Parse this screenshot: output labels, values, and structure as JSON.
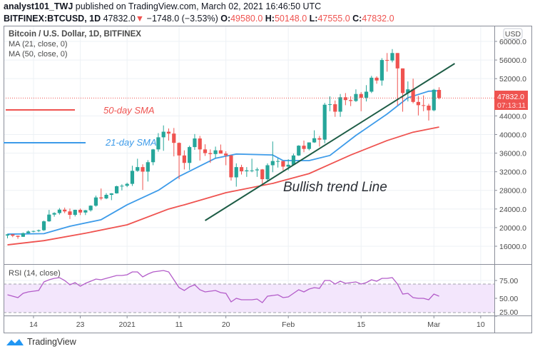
{
  "header": {
    "author": "analyst101_TWJ",
    "published_text": "published on TradingView.com, March 02, 2021 16:46:50 UTC",
    "symbol": "BITFINEX:BTCUSD, 1D",
    "last_price": "47832.0",
    "direction_icon": "triangle-down-icon",
    "change": "−1748.0 (−3.53%)",
    "open_label": "O:",
    "open": "49580.0",
    "high_label": "H:",
    "high": "50148.0",
    "low_label": "L:",
    "low": "47555.0",
    "close_label": "C:",
    "close": "47832.0"
  },
  "legend": {
    "title": "Bitcoin / U.S. Dollar, 1D, BITFINEX",
    "ma21": "MA (21, close, 0)",
    "ma50": "MA (50, close, 0)",
    "rsi": "RSI (14, close)"
  },
  "annotations": {
    "sma50_label": "50-day SMA",
    "sma21_label": "21-day SMA",
    "trend_label": "Bullish trend Line"
  },
  "price_axis": {
    "currency": "USD",
    "ticks": [
      "60000.0",
      "56000.0",
      "52000.0",
      "44000.0",
      "40000.0",
      "36000.0",
      "32000.0",
      "28000.0",
      "24000.0",
      "20000.0",
      "16000.0"
    ],
    "current_price": "47832.0",
    "countdown": "07:13:11"
  },
  "rsi_axis": {
    "ticks": [
      "75.00",
      "50.00",
      "25.00"
    ]
  },
  "time_axis": [
    {
      "label": "14",
      "date": "2020-12-14"
    },
    {
      "label": "23",
      "date": "2020-12-23"
    },
    {
      "label": "2021",
      "date": "2021-01-01"
    },
    {
      "label": "11",
      "date": "2021-01-11"
    },
    {
      "label": "20",
      "date": "2021-01-20"
    },
    {
      "label": "Feb",
      "date": "2021-02-01"
    },
    {
      "label": "15",
      "date": "2021-02-15"
    },
    {
      "label": "Mar",
      "date": "2021-03-01"
    },
    {
      "label": "10",
      "date": "2021-03-10"
    }
  ],
  "footer": {
    "brand": "TradingView"
  },
  "colors": {
    "up": "#26a69a",
    "down": "#ef5350",
    "ma21": "#3d9be9",
    "ma50": "#ef5350",
    "trend": "#1d5c45",
    "rsi": "#b35cc9",
    "rsi_band": "#f3e6fc"
  },
  "chart_data": {
    "type": "candlestick",
    "ylim": [
      14000,
      62000
    ],
    "candles_columns": [
      "date",
      "open",
      "high",
      "low",
      "close"
    ],
    "candles": [
      [
        "2020-12-09",
        18300,
        18650,
        17700,
        18550
      ],
      [
        "2020-12-10",
        18550,
        18600,
        17950,
        18250
      ],
      [
        "2020-12-11",
        18250,
        18300,
        17600,
        18030
      ],
      [
        "2020-12-12",
        18030,
        18950,
        18000,
        18800
      ],
      [
        "2020-12-13",
        18800,
        19400,
        18750,
        19170
      ],
      [
        "2020-12-14",
        19170,
        19350,
        19000,
        19270
      ],
      [
        "2020-12-15",
        19270,
        19580,
        19050,
        19440
      ],
      [
        "2020-12-16",
        19440,
        21500,
        19300,
        21350
      ],
      [
        "2020-12-17",
        21350,
        23800,
        21250,
        22800
      ],
      [
        "2020-12-18",
        22800,
        23300,
        22350,
        23130
      ],
      [
        "2020-12-19",
        23130,
        24200,
        22800,
        23860
      ],
      [
        "2020-12-20",
        23860,
        24300,
        23100,
        23480
      ],
      [
        "2020-12-21",
        23480,
        24100,
        21850,
        22740
      ],
      [
        "2020-12-22",
        22740,
        23850,
        22400,
        23820
      ],
      [
        "2020-12-23",
        23820,
        24100,
        22700,
        23240
      ],
      [
        "2020-12-24",
        23240,
        23800,
        22700,
        23730
      ],
      [
        "2020-12-25",
        23730,
        24790,
        23450,
        24710
      ],
      [
        "2020-12-26",
        24710,
        26870,
        24500,
        26480
      ],
      [
        "2020-12-27",
        26480,
        28400,
        25900,
        26270
      ],
      [
        "2020-12-28",
        26270,
        27400,
        26100,
        27040
      ],
      [
        "2020-12-29",
        27040,
        27400,
        25900,
        27360
      ],
      [
        "2020-12-30",
        27360,
        29000,
        27300,
        28890
      ],
      [
        "2020-12-31",
        28890,
        29300,
        28000,
        28990
      ],
      [
        "2021-01-01",
        28990,
        29650,
        28700,
        29400
      ],
      [
        "2021-01-02",
        29400,
        33300,
        28950,
        32200
      ],
      [
        "2021-01-03",
        32200,
        34800,
        32000,
        33000
      ],
      [
        "2021-01-04",
        33000,
        33600,
        28100,
        32030
      ],
      [
        "2021-01-05",
        32030,
        34500,
        29900,
        34050
      ],
      [
        "2021-01-06",
        34050,
        36900,
        33400,
        36800
      ],
      [
        "2021-01-07",
        36800,
        40300,
        36300,
        39400
      ],
      [
        "2021-01-08",
        39400,
        41950,
        36500,
        40600
      ],
      [
        "2021-01-09",
        40600,
        41300,
        38700,
        40200
      ],
      [
        "2021-01-10",
        40200,
        41400,
        35300,
        38200
      ],
      [
        "2021-01-11",
        38200,
        38300,
        30400,
        35500
      ],
      [
        "2021-01-12",
        35500,
        36600,
        32500,
        33900
      ],
      [
        "2021-01-13",
        33900,
        37600,
        32400,
        37300
      ],
      [
        "2021-01-14",
        37300,
        40100,
        36700,
        39150
      ],
      [
        "2021-01-15",
        39150,
        39700,
        34400,
        36800
      ],
      [
        "2021-01-16",
        36800,
        37900,
        35400,
        36000
      ],
      [
        "2021-01-17",
        36000,
        36800,
        33900,
        35800
      ],
      [
        "2021-01-18",
        35800,
        37400,
        34900,
        36600
      ],
      [
        "2021-01-19",
        36600,
        37850,
        35900,
        35900
      ],
      [
        "2021-01-20",
        35900,
        36400,
        33400,
        35500
      ],
      [
        "2021-01-21",
        35500,
        35600,
        30100,
        30800
      ],
      [
        "2021-01-22",
        30800,
        33800,
        28800,
        33000
      ],
      [
        "2021-01-23",
        33000,
        33500,
        31400,
        32100
      ],
      [
        "2021-01-24",
        32100,
        33000,
        30900,
        32300
      ],
      [
        "2021-01-25",
        32300,
        34800,
        31900,
        32300
      ],
      [
        "2021-01-26",
        32300,
        32900,
        30900,
        32500
      ],
      [
        "2021-01-27",
        32500,
        32600,
        29200,
        30400
      ],
      [
        "2021-01-28",
        30400,
        33800,
        29900,
        33400
      ],
      [
        "2021-01-29",
        33400,
        38500,
        31900,
        34300
      ],
      [
        "2021-01-30",
        34300,
        34900,
        32900,
        34300
      ],
      [
        "2021-01-31",
        34300,
        34300,
        32300,
        33100
      ],
      [
        "2021-02-01",
        33100,
        34700,
        32300,
        33500
      ],
      [
        "2021-02-02",
        33500,
        35900,
        33400,
        35500
      ],
      [
        "2021-02-03",
        35500,
        37700,
        35400,
        37600
      ],
      [
        "2021-02-04",
        37600,
        38700,
        36200,
        36900
      ],
      [
        "2021-02-05",
        36900,
        38300,
        36600,
        38300
      ],
      [
        "2021-02-06",
        38300,
        40900,
        38200,
        39200
      ],
      [
        "2021-02-07",
        39200,
        39700,
        37400,
        38900
      ],
      [
        "2021-02-08",
        38900,
        46800,
        38100,
        46400
      ],
      [
        "2021-02-09",
        46400,
        48200,
        45000,
        46500
      ],
      [
        "2021-02-10",
        46500,
        47300,
        43800,
        44900
      ],
      [
        "2021-02-11",
        44900,
        48700,
        43800,
        48000
      ],
      [
        "2021-02-12",
        48000,
        48900,
        46300,
        47400
      ],
      [
        "2021-02-13",
        47400,
        48200,
        46100,
        47200
      ],
      [
        "2021-02-14",
        47200,
        49700,
        47000,
        48700
      ],
      [
        "2021-02-15",
        48700,
        49100,
        45000,
        47900
      ],
      [
        "2021-02-16",
        47900,
        50600,
        47100,
        49200
      ],
      [
        "2021-02-17",
        49200,
        52600,
        48900,
        52200
      ],
      [
        "2021-02-18",
        52200,
        52500,
        50900,
        51600
      ],
      [
        "2021-02-19",
        51600,
        56400,
        50500,
        56000
      ],
      [
        "2021-02-20",
        56000,
        57500,
        53500,
        55900
      ],
      [
        "2021-02-21",
        55900,
        58350,
        55500,
        57500
      ],
      [
        "2021-02-22",
        57500,
        57500,
        46200,
        54200
      ],
      [
        "2021-02-23",
        54200,
        54200,
        44900,
        48900
      ],
      [
        "2021-02-24",
        48900,
        51400,
        47100,
        49700
      ],
      [
        "2021-02-25",
        49700,
        52000,
        46700,
        47000
      ],
      [
        "2021-02-26",
        47000,
        48300,
        44100,
        46300
      ],
      [
        "2021-02-27",
        46300,
        48400,
        45000,
        46200
      ],
      [
        "2021-02-28",
        46200,
        46600,
        43000,
        45200
      ],
      [
        "2021-03-01",
        45200,
        49800,
        45000,
        49600
      ],
      [
        "2021-03-02",
        49580,
        50148,
        47555,
        47832
      ]
    ],
    "ma21": [
      [
        "2020-12-09",
        18600
      ],
      [
        "2020-12-16",
        18700
      ],
      [
        "2020-12-21",
        20300
      ],
      [
        "2020-12-27",
        21700
      ],
      [
        "2021-01-01",
        24900
      ],
      [
        "2021-01-07",
        28000
      ],
      [
        "2021-01-11",
        31000
      ],
      [
        "2021-01-18",
        34900
      ],
      [
        "2021-01-22",
        35800
      ],
      [
        "2021-01-29",
        35600
      ],
      [
        "2021-01-31",
        34400
      ],
      [
        "2021-02-05",
        34400
      ],
      [
        "2021-02-09",
        35500
      ],
      [
        "2021-02-14",
        39800
      ],
      [
        "2021-02-20",
        44400
      ],
      [
        "2021-02-24",
        47900
      ],
      [
        "2021-02-28",
        49300
      ],
      [
        "2021-03-02",
        49400
      ]
    ],
    "ma50": [
      [
        "2020-12-09",
        16300
      ],
      [
        "2020-12-16",
        17200
      ],
      [
        "2020-12-24",
        18800
      ],
      [
        "2021-01-01",
        20600
      ],
      [
        "2021-01-09",
        24000
      ],
      [
        "2021-01-12",
        24900
      ],
      [
        "2021-01-20",
        27500
      ],
      [
        "2021-01-29",
        29500
      ],
      [
        "2021-02-05",
        31600
      ],
      [
        "2021-02-09",
        33600
      ],
      [
        "2021-02-13",
        35600
      ],
      [
        "2021-02-20",
        38700
      ],
      [
        "2021-02-25",
        40500
      ],
      [
        "2021-03-02",
        41600
      ]
    ],
    "trend_line": [
      [
        "2021-01-16",
        21520
      ],
      [
        "2021-03-05",
        55250
      ]
    ],
    "rsi": {
      "ylim": [
        20,
        100
      ],
      "bands": [
        30,
        70
      ],
      "values": [
        55,
        53,
        51,
        57,
        59,
        60,
        61,
        73,
        76,
        78,
        79,
        75,
        69,
        72,
        67,
        71,
        74,
        77,
        76,
        78,
        80,
        82,
        82,
        83,
        87,
        87,
        80,
        84,
        87,
        88,
        89,
        87,
        76,
        65,
        61,
        66,
        69,
        62,
        59,
        60,
        61,
        58,
        57,
        45,
        50,
        48,
        48,
        48,
        49,
        44,
        53,
        54,
        55,
        51,
        52,
        57,
        62,
        59,
        63,
        65,
        64,
        75,
        75,
        70,
        74,
        71,
        72,
        73,
        70,
        72,
        76,
        74,
        78,
        78,
        79,
        70,
        56,
        57,
        51,
        50,
        50,
        48,
        56,
        53
      ]
    }
  }
}
